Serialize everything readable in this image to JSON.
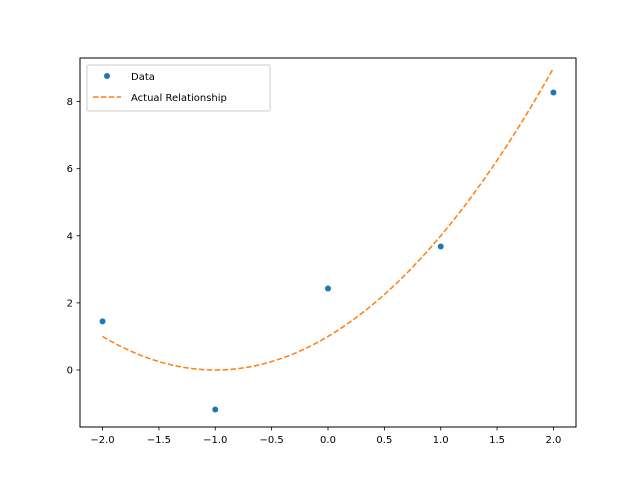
{
  "chart_data": {
    "type": "scatter",
    "title": "",
    "xlabel": "",
    "ylabel": "",
    "xlim": [
      -2.2,
      2.2
    ],
    "ylim": [
      -1.7,
      9.3
    ],
    "xticks": [
      -2.0,
      -1.5,
      -1.0,
      -0.5,
      0.0,
      0.5,
      1.0,
      1.5,
      2.0
    ],
    "xtick_labels": [
      "−2.0",
      "−1.5",
      "−1.0",
      "−0.5",
      "0.0",
      "0.5",
      "1.0",
      "1.5",
      "2.0"
    ],
    "yticks": [
      0,
      2,
      4,
      6,
      8
    ],
    "ytick_labels": [
      "0",
      "2",
      "4",
      "6",
      "8"
    ],
    "grid": false,
    "legend_position": "upper-left",
    "series": [
      {
        "name": "Data",
        "kind": "scatter",
        "color": "#1f77b4",
        "x": [
          -2.0,
          -1.0,
          0.0,
          1.0,
          2.0
        ],
        "y": [
          1.45,
          -1.18,
          2.43,
          3.68,
          8.27
        ]
      },
      {
        "name": "Actual Relationship",
        "kind": "line",
        "style": "dashed",
        "color": "#ff7f0e",
        "function": "y = (x + 1)^2",
        "x_range": [
          -2.0,
          2.0
        ]
      }
    ]
  }
}
